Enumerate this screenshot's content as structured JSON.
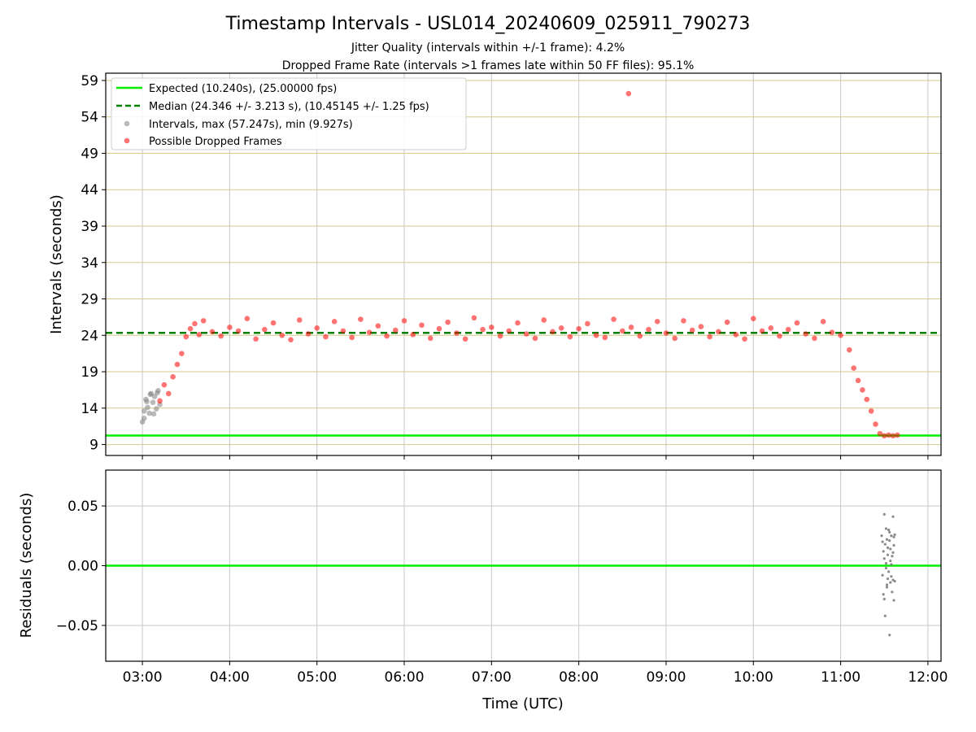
{
  "chart_data": [
    {
      "type": "scatter",
      "title": "Timestamp Intervals - USL014_20240609_025911_790273",
      "subtitle_1": "Jitter Quality (intervals within +/-1 frame): 4.2%",
      "subtitle_2": "Dropped Frame Rate (intervals >1 frames late within 50 FF files): 95.1%",
      "xlabel": "",
      "ylabel": "Intervals (seconds)",
      "xlim": [
        2.58,
        12.15
      ],
      "ylim": [
        7.5,
        60.0
      ],
      "y_ticks": [
        9,
        14,
        19,
        24,
        29,
        34,
        39,
        44,
        49,
        54,
        59
      ],
      "y_tick_labels": [
        "9",
        "14",
        "19",
        "24",
        "29",
        "34",
        "39",
        "44",
        "49",
        "54",
        "59"
      ],
      "grid": true,
      "legend_position": "upper-left",
      "legend": [
        {
          "label": "Expected (10.240s), (25.00000 fps)",
          "style": "line-solid",
          "color": "#00ee00"
        },
        {
          "label": "Median (24.346 +/- 3.213 s), (10.45145 +/- 1.25 fps)",
          "style": "line-dashed",
          "color": "#008000"
        },
        {
          "label": "Intervals, max (57.247s), min (9.927s)",
          "style": "marker",
          "color": "#808080"
        },
        {
          "label": "Possible Dropped Frames",
          "style": "marker",
          "color": "#ff0000"
        }
      ],
      "reference_lines": {
        "expected": 10.24,
        "median": 24.346
      },
      "series": [
        {
          "name": "Intervals, max (57.247s), min (9.927s)",
          "color": "#808080",
          "x": [
            3.0,
            3.02,
            3.04,
            3.06,
            3.08,
            3.1,
            3.12,
            3.14,
            3.16,
            3.18,
            3.2,
            3.02,
            3.05,
            3.09,
            3.13,
            3.17
          ],
          "y": [
            12.1,
            13.6,
            15.2,
            14.1,
            13.3,
            16.0,
            14.8,
            15.6,
            13.9,
            16.4,
            14.5,
            12.6,
            14.9,
            15.9,
            13.2,
            16.1
          ]
        },
        {
          "name": "Possible Dropped Frames",
          "color": "#ff0000",
          "x": [
            3.2,
            3.25,
            3.3,
            3.35,
            3.4,
            3.45,
            3.5,
            3.55,
            3.6,
            3.65,
            3.7,
            3.8,
            3.9,
            4.0,
            4.1,
            4.2,
            4.3,
            4.4,
            4.5,
            4.6,
            4.7,
            4.8,
            4.9,
            5.0,
            5.1,
            5.2,
            5.3,
            5.4,
            5.5,
            5.6,
            5.7,
            5.8,
            5.9,
            6.0,
            6.1,
            6.2,
            6.3,
            6.4,
            6.5,
            6.6,
            6.7,
            6.8,
            6.9,
            7.0,
            7.1,
            7.2,
            7.3,
            7.4,
            7.5,
            7.6,
            7.7,
            7.8,
            7.9,
            8.0,
            8.1,
            8.2,
            8.3,
            8.4,
            8.5,
            8.57,
            8.6,
            8.7,
            8.8,
            8.9,
            9.0,
            9.1,
            9.2,
            9.3,
            9.4,
            9.5,
            9.6,
            9.7,
            9.8,
            9.9,
            10.0,
            10.1,
            10.2,
            10.3,
            10.4,
            10.5,
            10.6,
            10.7,
            10.8,
            10.9,
            11.0,
            11.1,
            11.15,
            11.2,
            11.25,
            11.3,
            11.35,
            11.4,
            11.45,
            11.5,
            11.55,
            11.6,
            11.65
          ],
          "y": [
            15.0,
            17.2,
            16.0,
            18.3,
            20.0,
            21.5,
            23.8,
            24.9,
            25.6,
            24.1,
            26.0,
            24.5,
            23.9,
            25.1,
            24.6,
            26.3,
            23.5,
            24.8,
            25.7,
            24.0,
            23.4,
            26.1,
            24.2,
            25.0,
            23.8,
            25.9,
            24.6,
            23.7,
            26.2,
            24.4,
            25.3,
            23.9,
            24.7,
            26.0,
            24.1,
            25.4,
            23.6,
            24.9,
            25.8,
            24.3,
            23.5,
            26.4,
            24.8,
            25.1,
            23.9,
            24.6,
            25.7,
            24.2,
            23.6,
            26.1,
            24.5,
            25.0,
            23.8,
            24.9,
            25.6,
            24.0,
            23.7,
            26.2,
            24.6,
            57.2,
            25.1,
            23.9,
            24.8,
            25.9,
            24.3,
            23.6,
            26.0,
            24.7,
            25.2,
            23.8,
            24.5,
            25.8,
            24.1,
            23.5,
            26.3,
            24.6,
            25.0,
            23.9,
            24.8,
            25.7,
            24.2,
            23.6,
            25.9,
            24.4,
            24.0,
            22.0,
            19.5,
            17.8,
            16.5,
            15.2,
            13.6,
            11.8,
            10.5,
            10.2,
            10.3,
            10.2,
            10.3
          ]
        }
      ]
    },
    {
      "type": "scatter",
      "xlabel": "Time (UTC)",
      "ylabel": "Residuals (seconds)",
      "xlim": [
        2.58,
        12.15
      ],
      "ylim": [
        -0.08,
        0.08
      ],
      "x_ticks": [
        3,
        4,
        5,
        6,
        7,
        8,
        9,
        10,
        11,
        12
      ],
      "x_tick_labels": [
        "03:00",
        "04:00",
        "05:00",
        "06:00",
        "07:00",
        "08:00",
        "09:00",
        "10:00",
        "11:00",
        "12:00"
      ],
      "y_ticks": [
        -0.05,
        0.0,
        0.05
      ],
      "y_tick_labels": [
        "−0.05",
        "0.00",
        "0.05"
      ],
      "grid": true,
      "reference_lines": {
        "zero": 0.0
      },
      "series": [
        {
          "color": "#808080",
          "x": [
            11.47,
            11.48,
            11.49,
            11.5,
            11.5,
            11.51,
            11.51,
            11.52,
            11.52,
            11.53,
            11.53,
            11.54,
            11.54,
            11.55,
            11.55,
            11.56,
            11.56,
            11.57,
            11.57,
            11.58,
            11.58,
            11.59,
            11.59,
            11.6,
            11.6,
            11.61,
            11.61,
            11.62,
            11.62,
            11.5,
            11.52,
            11.54,
            11.56,
            11.58,
            11.6,
            11.48,
            11.53,
            11.57,
            11.61,
            11.49
          ],
          "y": [
            0.025,
            -0.008,
            0.012,
            0.043,
            -0.028,
            0.018,
            -0.042,
            0.031,
            0.002,
            -0.018,
            0.022,
            0.009,
            -0.011,
            0.03,
            -0.005,
            0.021,
            -0.058,
            0.014,
            -0.014,
            0.001,
            0.025,
            -0.022,
            0.008,
            0.041,
            -0.012,
            0.017,
            -0.029,
            0.026,
            -0.013,
            0.006,
            -0.002,
            0.015,
            0.028,
            -0.009,
            0.011,
            0.02,
            -0.016,
            0.004,
            0.024,
            -0.024
          ]
        }
      ]
    }
  ]
}
